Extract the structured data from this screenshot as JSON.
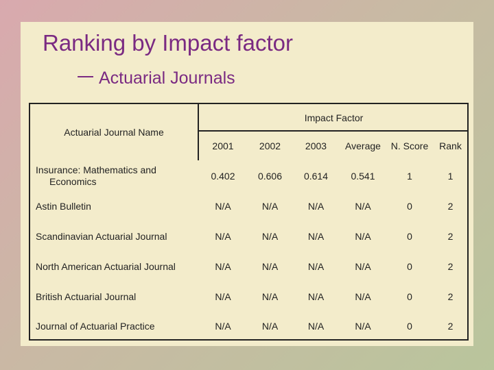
{
  "header": {
    "title": "Ranking by Impact factor",
    "subtitle": "一 Actuarial Journals"
  },
  "table": {
    "name_header": "Actuarial Journal Name",
    "group_header": "Impact Factor",
    "columns": [
      "2001",
      "2002",
      "2003",
      "Average",
      "N. Score",
      "Rank"
    ],
    "rows": [
      [
        "Insurance: Mathematics and Economics",
        "0.402",
        "0.606",
        "0.614",
        "0.541",
        "1",
        "1"
      ],
      [
        "Astin Bulletin",
        "N/A",
        "N/A",
        "N/A",
        "N/A",
        "0",
        "2"
      ],
      [
        "Scandinavian Actuarial Journal",
        "N/A",
        "N/A",
        "N/A",
        "N/A",
        "0",
        "2"
      ],
      [
        "North American Actuarial Journal",
        "N/A",
        "N/A",
        "N/A",
        "N/A",
        "0",
        "2"
      ],
      [
        "British Actuarial Journal",
        "N/A",
        "N/A",
        "N/A",
        "N/A",
        "0",
        "2"
      ],
      [
        "Journal of Actuarial Practice",
        "N/A",
        "N/A",
        "N/A",
        "N/A",
        "0",
        "2"
      ]
    ]
  }
}
